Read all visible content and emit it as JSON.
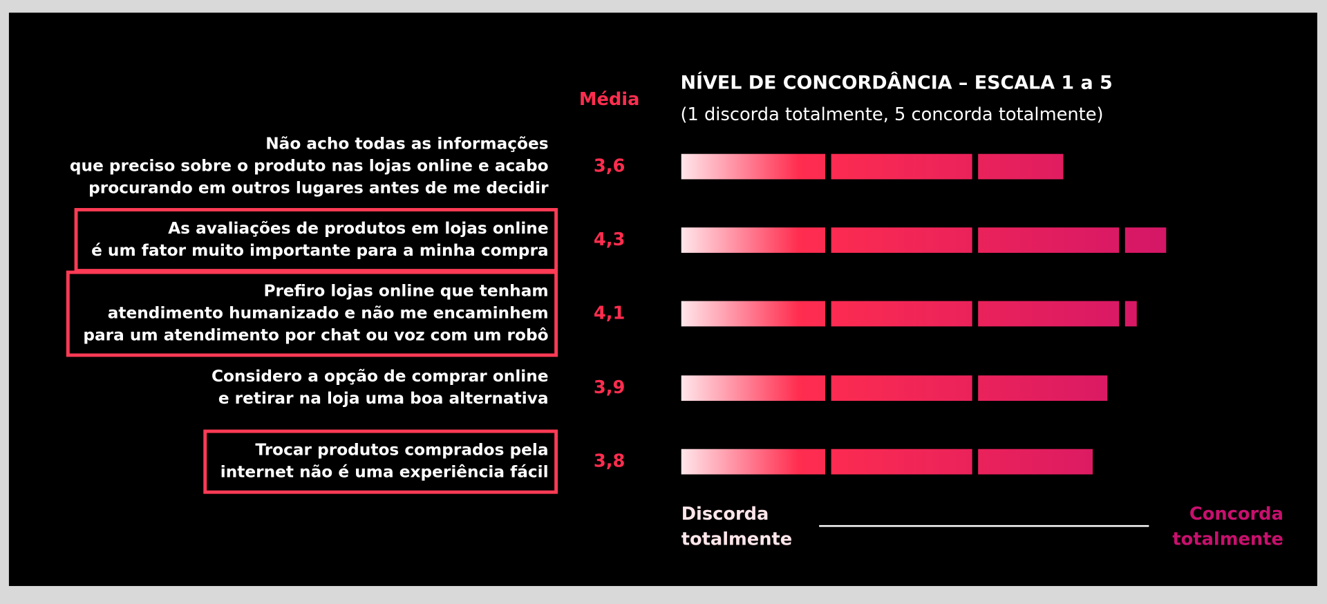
{
  "chart_data": {
    "type": "bar",
    "orientation": "horizontal",
    "title": "NÍVEL DE CONCORDÂNCIA – ESCALA 1 a 5",
    "subtitle": "(1 discorda totalmente, 5 concorda totalmente)",
    "value_header": "Média",
    "categories": [
      [
        "Não acho todas as informações",
        "que preciso sobre o produto nas lojas online e acabo",
        "procurando em outros lugares antes de me decidir"
      ],
      [
        "As avaliações de produtos em lojas online",
        "é um fator muito importante para a minha compra"
      ],
      [
        "Prefiro lojas online que tenham",
        "atendimento humanizado e não me encaminhem",
        "para um atendimento por chat ou voz com um robô"
      ],
      [
        "Considero a opção de comprar online",
        "e retirar na loja uma boa alternativa"
      ],
      [
        "Trocar produtos comprados pela",
        "internet não é uma experiência fácil"
      ]
    ],
    "values": [
      3.6,
      4.3,
      4.1,
      3.9,
      3.8
    ],
    "value_labels": [
      "3,6",
      "4,3",
      "4,1",
      "3,9",
      "3,8"
    ],
    "highlighted": [
      false,
      true,
      true,
      false,
      true
    ],
    "xlim": [
      1,
      5
    ],
    "scale_left_label": "Discorda\ntotalmente",
    "scale_right_label": "Concorda\ntotalmente",
    "colors": {
      "start": "#ffe6ea",
      "middle": "#ff2d4f",
      "end": "#c8106e",
      "highlight": "#ff3b55"
    }
  }
}
